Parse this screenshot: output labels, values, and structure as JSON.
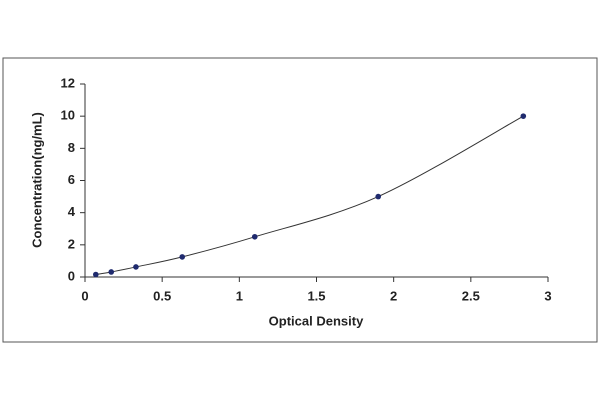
{
  "chart_data": {
    "type": "line",
    "x_label": "Optical Density",
    "y_label": "Concentration(ng/mL)",
    "x": [
      0.07,
      0.17,
      0.33,
      0.63,
      1.1,
      1.9,
      2.84
    ],
    "values": [
      0.156,
      0.312,
      0.625,
      1.25,
      2.5,
      5,
      10
    ],
    "color": "#1f2a6e",
    "line_color": "#333333",
    "xlim": [
      0,
      3
    ],
    "xticks": [
      0,
      0.5,
      1,
      1.5,
      2,
      2.5,
      3
    ],
    "ylim": [
      0,
      12
    ],
    "yticks": [
      0,
      2,
      4,
      6,
      8,
      10,
      12
    ],
    "grid": false
  }
}
